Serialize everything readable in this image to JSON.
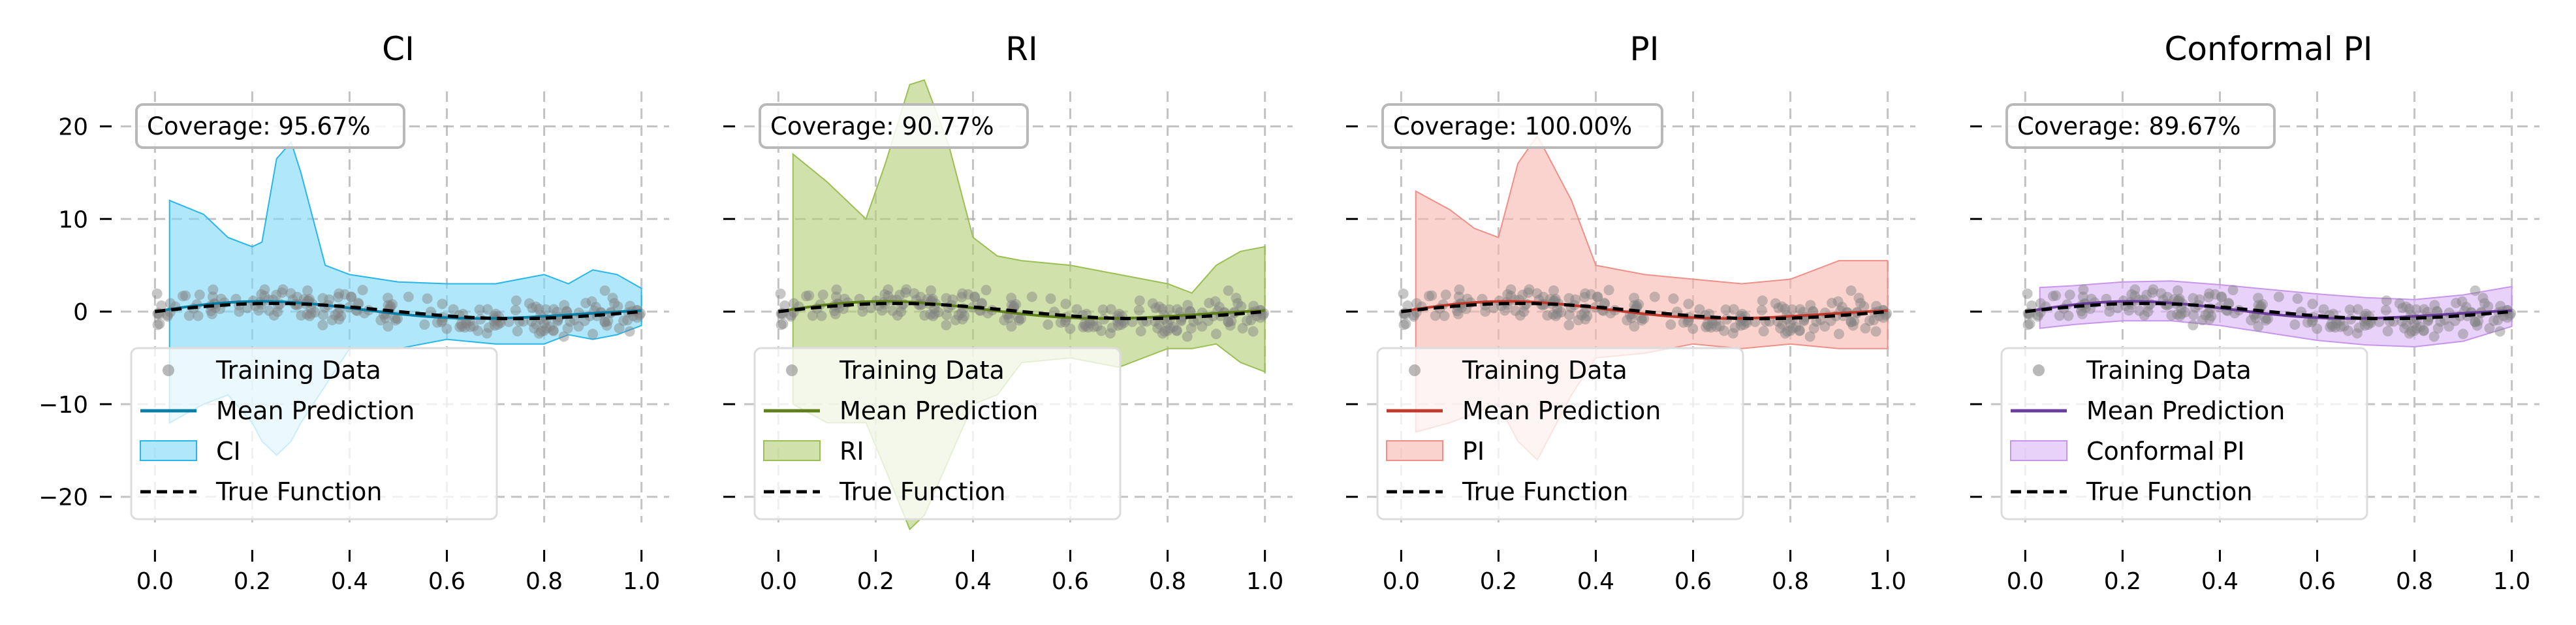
{
  "chart_data": [
    {
      "type": "line",
      "title": "CI",
      "xlabel": "",
      "ylabel": "",
      "xlim": [
        -0.03,
        1.03
      ],
      "ylim": [
        -27,
        28
      ],
      "xticks": [
        "0.0",
        "0.2",
        "0.4",
        "0.6",
        "0.8",
        "1.0"
      ],
      "yticks": [
        "20",
        "10",
        "0",
        "−10",
        "−20"
      ],
      "grid": true,
      "show_y_tick_labels": true,
      "coverage_label": "Coverage: 95.67%",
      "legend_placement": "lower-left",
      "colors": {
        "band": "#7fd8f7",
        "band_edge": "#29b6e8",
        "mean": "#0a7fa6",
        "points": "#808080",
        "true_fn": "#000000"
      },
      "band": {
        "x": [
          0.03,
          0.1,
          0.15,
          0.2,
          0.22,
          0.25,
          0.28,
          0.3,
          0.35,
          0.4,
          0.5,
          0.6,
          0.7,
          0.8,
          0.85,
          0.9,
          0.95,
          1.0
        ],
        "upper": [
          12.0,
          10.5,
          8.0,
          7.0,
          7.5,
          16.5,
          18.3,
          15.0,
          5.0,
          4.0,
          3.2,
          3.0,
          3.0,
          4.0,
          3.0,
          4.5,
          4.0,
          2.5
        ],
        "lower": [
          -12.0,
          -10.0,
          -9.0,
          -12.0,
          -14.0,
          -15.5,
          -14.0,
          -12.0,
          -8.0,
          -4.0,
          -4.0,
          -3.0,
          -3.5,
          -3.5,
          -2.5,
          -3.0,
          -2.5,
          -1.5
        ]
      },
      "legend": [
        "Training Data",
        "Mean Prediction",
        "CI",
        "True Function"
      ]
    },
    {
      "type": "line",
      "title": "RI",
      "xlabel": "",
      "ylabel": "",
      "xlim": [
        -0.03,
        1.03
      ],
      "ylim": [
        -27,
        28
      ],
      "xticks": [
        "0.0",
        "0.2",
        "0.4",
        "0.6",
        "0.8",
        "1.0"
      ],
      "yticks": [
        "20",
        "10",
        "0",
        "−10",
        "−20"
      ],
      "grid": true,
      "show_y_tick_labels": false,
      "coverage_label": "Coverage: 90.77%",
      "legend_placement": "lower-left",
      "colors": {
        "band": "#b5cf77",
        "band_edge": "#9bbf55",
        "mean": "#5f7f1a",
        "points": "#808080",
        "true_fn": "#000000"
      },
      "band": {
        "x": [
          0.03,
          0.1,
          0.18,
          0.22,
          0.27,
          0.3,
          0.35,
          0.4,
          0.45,
          0.5,
          0.6,
          0.7,
          0.8,
          0.85,
          0.9,
          0.95,
          1.0
        ],
        "upper": [
          17.0,
          14.0,
          10.0,
          16.0,
          24.5,
          25.0,
          18.0,
          8.0,
          6.0,
          5.5,
          5.0,
          4.0,
          3.0,
          2.0,
          5.0,
          6.5,
          7.0
        ],
        "lower": [
          -10.0,
          -12.0,
          -12.0,
          -17.0,
          -23.5,
          -22.0,
          -16.0,
          -10.0,
          -9.0,
          -5.5,
          -5.0,
          -6.0,
          -4.0,
          -4.0,
          -3.5,
          -5.5,
          -6.5
        ]
      },
      "legend": [
        "Training Data",
        "Mean Prediction",
        "RI",
        "True Function"
      ]
    },
    {
      "type": "line",
      "title": "PI",
      "xlabel": "",
      "ylabel": "",
      "xlim": [
        -0.03,
        1.03
      ],
      "ylim": [
        -27,
        28
      ],
      "xticks": [
        "0.0",
        "0.2",
        "0.4",
        "0.6",
        "0.8",
        "1.0"
      ],
      "yticks": [
        "20",
        "10",
        "0",
        "−10",
        "−20"
      ],
      "grid": true,
      "show_y_tick_labels": false,
      "coverage_label": "Coverage: 100.00%",
      "legend_placement": "lower-left",
      "colors": {
        "band": "#f7b8b0",
        "band_edge": "#ee9088",
        "mean": "#c0392b",
        "points": "#808080",
        "true_fn": "#000000"
      },
      "band": {
        "x": [
          0.03,
          0.1,
          0.15,
          0.2,
          0.24,
          0.28,
          0.3,
          0.35,
          0.4,
          0.5,
          0.6,
          0.7,
          0.8,
          0.9,
          1.0
        ],
        "upper": [
          13.0,
          11.0,
          9.0,
          8.0,
          16.0,
          19.0,
          17.0,
          12.0,
          5.0,
          4.0,
          3.5,
          3.0,
          3.5,
          5.5,
          5.5
        ],
        "lower": [
          -13.0,
          -12.0,
          -11.0,
          -10.0,
          -14.0,
          -16.0,
          -14.0,
          -9.0,
          -5.0,
          -4.5,
          -3.5,
          -4.0,
          -3.5,
          -4.0,
          -4.0
        ]
      },
      "legend": [
        "Training Data",
        "Mean Prediction",
        "PI",
        "True Function"
      ]
    },
    {
      "type": "line",
      "title": "Conformal PI",
      "xlabel": "",
      "ylabel": "",
      "xlim": [
        -0.03,
        1.03
      ],
      "ylim": [
        -27,
        28
      ],
      "xticks": [
        "0.0",
        "0.2",
        "0.4",
        "0.6",
        "0.8",
        "1.0"
      ],
      "yticks": [
        "20",
        "10",
        "0",
        "−10",
        "−20"
      ],
      "grid": true,
      "show_y_tick_labels": false,
      "coverage_label": "Coverage: 89.67%",
      "legend_placement": "lower-left",
      "colors": {
        "band": "#dcb6f5",
        "band_edge": "#c795ea",
        "mean": "#6a3d9a",
        "points": "#808080",
        "true_fn": "#000000"
      },
      "band": {
        "x": [
          0.03,
          0.1,
          0.2,
          0.3,
          0.4,
          0.5,
          0.6,
          0.7,
          0.8,
          0.9,
          1.0
        ],
        "upper": [
          2.6,
          2.8,
          3.2,
          3.3,
          2.9,
          2.4,
          1.9,
          1.5,
          1.3,
          1.8,
          2.7
        ],
        "lower": [
          -1.8,
          -1.4,
          -1.0,
          -1.0,
          -1.5,
          -2.3,
          -3.1,
          -3.6,
          -3.8,
          -3.2,
          -1.6
        ]
      },
      "legend": [
        "Training Data",
        "Mean Prediction",
        "Conformal PI",
        "True Function"
      ]
    }
  ]
}
